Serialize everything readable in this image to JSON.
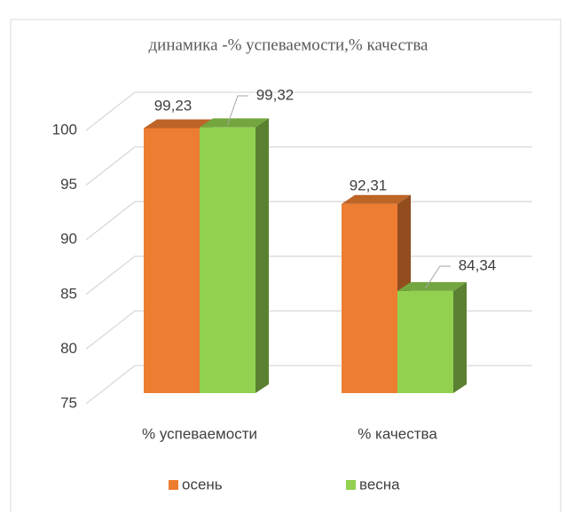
{
  "chart_data": {
    "type": "bar3d",
    "title": "динамика -% успеваемости,% качества",
    "categories": [
      "% успеваемости",
      "% качества"
    ],
    "series": [
      {
        "name": "осень",
        "color": "#ED7D31",
        "values": [
          99.23,
          92.31
        ],
        "value_labels": [
          "99,23",
          "92,31"
        ]
      },
      {
        "name": "весна",
        "color": "#92D050",
        "values": [
          99.32,
          84.34
        ],
        "value_labels": [
          "99,32",
          "84,34"
        ]
      }
    ],
    "ylim": [
      75,
      100
    ],
    "yticks": [
      75,
      80,
      85,
      90,
      95,
      100
    ],
    "grid": true,
    "legend": "bottom"
  }
}
